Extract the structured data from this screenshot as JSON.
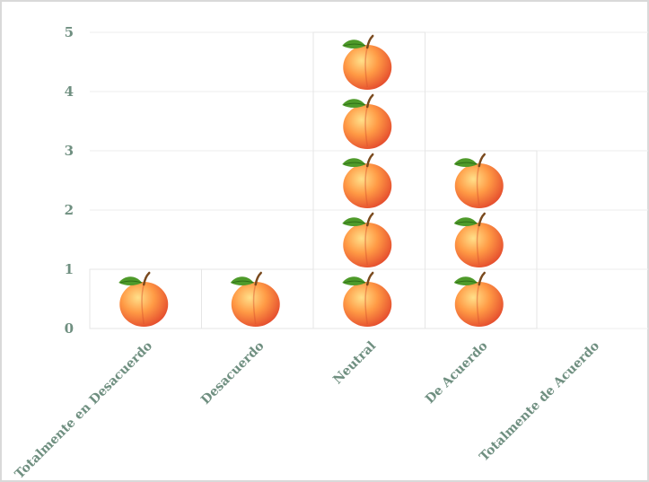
{
  "chart_data": {
    "type": "bar",
    "style": "pictograph",
    "icon": "peach-icon",
    "categories": [
      "Totalmente en Desacuerdo",
      "Desacuerdo",
      "Neutral",
      "De Acuerdo",
      "Totalmente de Acuerdo"
    ],
    "values": [
      1,
      1,
      5,
      3,
      0
    ],
    "y_ticks": [
      "0",
      "1",
      "2",
      "3",
      "4",
      "5"
    ],
    "ylim": [
      0,
      5
    ],
    "grid": true,
    "colors": {
      "axis_text": "#6f8f80",
      "peach_light": "#ffd27a",
      "peach_mid": "#ff8a3d",
      "peach_dark": "#e8452a",
      "leaf": "#4e9a2a",
      "stem": "#7a4a1e",
      "grid": "#eeeeee",
      "bar_outline": "#e6e6e6"
    }
  }
}
